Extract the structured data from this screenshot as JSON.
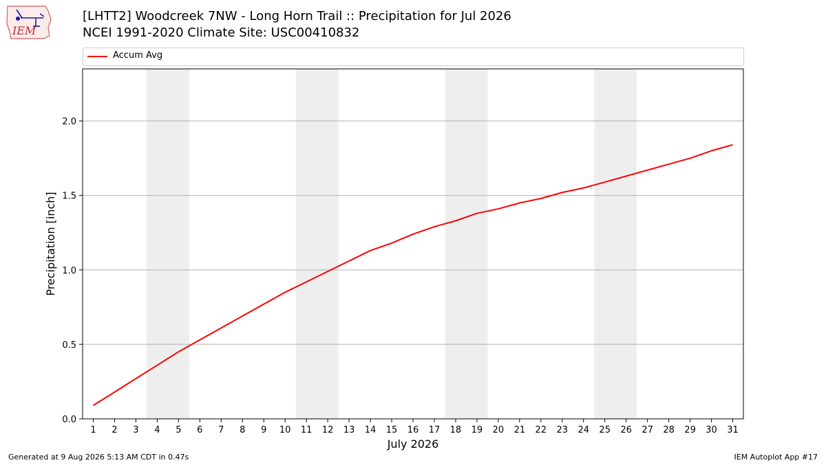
{
  "header": {
    "logo_text": "IEM",
    "title_line1": "[LHTT2] Woodcreek 7NW - Long Horn Trail :: Precipitation for Jul 2026",
    "title_line2": "NCEI 1991-2020 Climate Site: USC00410832"
  },
  "footer": {
    "generated": "Generated at 9 Aug 2026 5:13 AM CDT in 0.47s",
    "app": "IEM Autoplot App #17"
  },
  "colors": {
    "line": "#ff0000",
    "weekend_band": "#eeeeee",
    "grid": "#b0b0b0"
  },
  "chart_data": {
    "type": "line",
    "title": "[LHTT2] Woodcreek 7NW - Long Horn Trail :: Precipitation for Jul 2026",
    "subtitle": "NCEI 1991-2020 Climate Site: USC00410832",
    "xlabel": "July 2026",
    "ylabel": "Precipitation [inch]",
    "x": [
      1,
      2,
      3,
      4,
      5,
      6,
      7,
      8,
      9,
      10,
      11,
      12,
      13,
      14,
      15,
      16,
      17,
      18,
      19,
      20,
      21,
      22,
      23,
      24,
      25,
      26,
      27,
      28,
      29,
      30,
      31
    ],
    "x_tick_labels": [
      "1",
      "2",
      "3",
      "4",
      "5",
      "6",
      "7",
      "8",
      "9",
      "10",
      "11",
      "12",
      "13",
      "14",
      "15",
      "16",
      "17",
      "18",
      "19",
      "20",
      "21",
      "22",
      "23",
      "24",
      "25",
      "26",
      "27",
      "28",
      "29",
      "30",
      "31"
    ],
    "series": [
      {
        "name": "Accum Avg",
        "color": "#ff0000",
        "values": [
          0.09,
          0.18,
          0.27,
          0.36,
          0.45,
          0.53,
          0.61,
          0.69,
          0.77,
          0.85,
          0.92,
          0.99,
          1.06,
          1.13,
          1.18,
          1.24,
          1.29,
          1.33,
          1.38,
          1.41,
          1.45,
          1.48,
          1.52,
          1.55,
          1.59,
          1.63,
          1.67,
          1.71,
          1.75,
          1.8,
          1.84
        ]
      }
    ],
    "shaded_days": [
      [
        4,
        5
      ],
      [
        11,
        12
      ],
      [
        18,
        19
      ],
      [
        25,
        26
      ]
    ],
    "xlim": [
      0.5,
      31.5
    ],
    "ylim": [
      0,
      2.35
    ],
    "y_ticks": [
      0.0,
      0.5,
      1.0,
      1.5,
      2.0
    ],
    "y_tick_labels": [
      "0.0",
      "0.5",
      "1.0",
      "1.5",
      "2.0"
    ],
    "grid": "horizontal",
    "legend_position": "top"
  }
}
